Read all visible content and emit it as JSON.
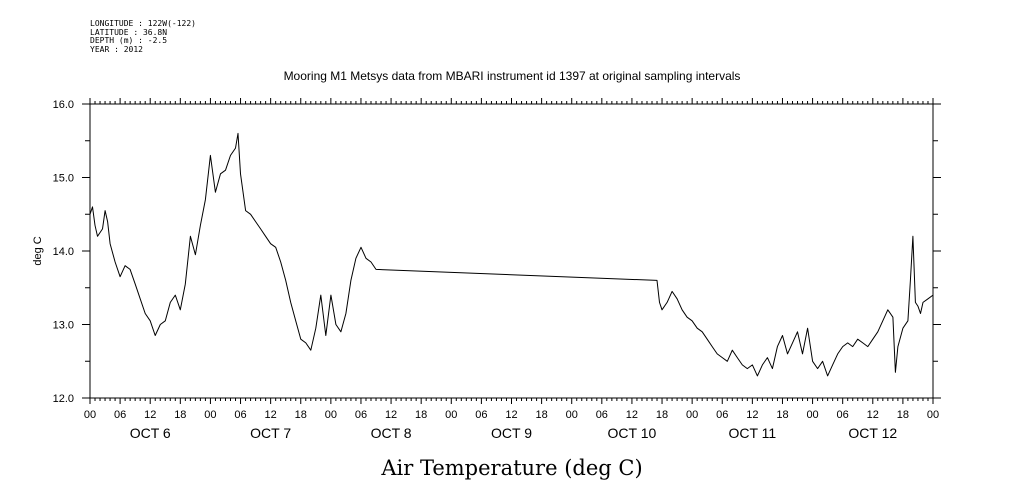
{
  "header": {
    "longitude": "LONGITUDE : 122W(-122)",
    "latitude": "LATITUDE : 36.8N",
    "depth": "DEPTH (m) : -2.5",
    "year": "YEAR : 2012"
  },
  "chart_data": {
    "type": "line",
    "title": "Mooring M1 Metsys data from MBARI instrument id 1397 at original sampling intervals",
    "xlabel": "Air Temperature (deg C)",
    "ylabel": "deg C",
    "ylim": [
      12.0,
      16.0
    ],
    "yticks": [
      "12.0",
      "13.0",
      "14.0",
      "15.0",
      "16.0"
    ],
    "x_units": "hours since OCT 6 00:00",
    "xlim": [
      0,
      168
    ],
    "hour_ticks": [
      "00",
      "06",
      "12",
      "18",
      "00",
      "06",
      "12",
      "18",
      "00",
      "06",
      "12",
      "18",
      "00",
      "06",
      "12",
      "18",
      "00",
      "06",
      "12",
      "18",
      "00",
      "06",
      "12",
      "18",
      "00",
      "06",
      "12",
      "18",
      "00"
    ],
    "day_labels": [
      "OCT  6",
      "OCT  7",
      "OCT  8",
      "OCT  9",
      "OCT 10",
      "OCT 11",
      "OCT 12"
    ],
    "grid": false,
    "series": [
      {
        "values": [
          [
            0,
            14.5
          ],
          [
            0.5,
            14.6
          ],
          [
            1,
            14.35
          ],
          [
            1.5,
            14.2
          ],
          [
            2,
            14.25
          ],
          [
            2.5,
            14.3
          ],
          [
            3,
            14.55
          ],
          [
            3.5,
            14.4
          ],
          [
            4,
            14.1
          ],
          [
            5,
            13.85
          ],
          [
            6,
            13.65
          ],
          [
            7,
            13.8
          ],
          [
            8,
            13.75
          ],
          [
            9,
            13.55
          ],
          [
            10,
            13.35
          ],
          [
            11,
            13.15
          ],
          [
            12,
            13.05
          ],
          [
            13,
            12.85
          ],
          [
            14,
            13.0
          ],
          [
            15,
            13.05
          ],
          [
            16,
            13.3
          ],
          [
            17,
            13.4
          ],
          [
            18,
            13.2
          ],
          [
            19,
            13.55
          ],
          [
            20,
            14.2
          ],
          [
            21,
            13.95
          ],
          [
            22,
            14.35
          ],
          [
            23,
            14.7
          ],
          [
            24,
            15.3
          ],
          [
            25,
            14.8
          ],
          [
            26,
            15.05
          ],
          [
            27,
            15.1
          ],
          [
            28,
            15.3
          ],
          [
            29,
            15.4
          ],
          [
            29.5,
            15.6
          ],
          [
            30,
            15.05
          ],
          [
            31,
            14.55
          ],
          [
            32,
            14.5
          ],
          [
            33,
            14.4
          ],
          [
            34,
            14.3
          ],
          [
            35,
            14.2
          ],
          [
            36,
            14.1
          ],
          [
            37,
            14.05
          ],
          [
            38,
            13.85
          ],
          [
            39,
            13.6
          ],
          [
            40,
            13.3
          ],
          [
            41,
            13.05
          ],
          [
            42,
            12.8
          ],
          [
            43,
            12.75
          ],
          [
            44,
            12.65
          ],
          [
            45,
            12.95
          ],
          [
            46,
            13.4
          ],
          [
            47,
            12.85
          ],
          [
            48,
            13.4
          ],
          [
            49,
            13.0
          ],
          [
            50,
            12.9
          ],
          [
            51,
            13.15
          ],
          [
            52,
            13.6
          ],
          [
            53,
            13.9
          ],
          [
            54,
            14.05
          ],
          [
            55,
            13.9
          ],
          [
            56,
            13.85
          ],
          [
            57,
            13.75
          ],
          [
            113,
            13.6
          ],
          [
            113.5,
            13.3
          ],
          [
            114,
            13.2
          ],
          [
            115,
            13.3
          ],
          [
            116,
            13.45
          ],
          [
            117,
            13.35
          ],
          [
            118,
            13.2
          ],
          [
            119,
            13.1
          ],
          [
            120,
            13.05
          ],
          [
            121,
            12.95
          ],
          [
            122,
            12.9
          ],
          [
            123,
            12.8
          ],
          [
            124,
            12.7
          ],
          [
            125,
            12.6
          ],
          [
            126,
            12.55
          ],
          [
            127,
            12.5
          ],
          [
            128,
            12.65
          ],
          [
            129,
            12.55
          ],
          [
            130,
            12.45
          ],
          [
            131,
            12.4
          ],
          [
            132,
            12.45
          ],
          [
            133,
            12.3
          ],
          [
            134,
            12.45
          ],
          [
            135,
            12.55
          ],
          [
            136,
            12.4
          ],
          [
            137,
            12.7
          ],
          [
            138,
            12.85
          ],
          [
            139,
            12.6
          ],
          [
            140,
            12.75
          ],
          [
            141,
            12.9
          ],
          [
            142,
            12.6
          ],
          [
            143,
            12.95
          ],
          [
            144,
            12.5
          ],
          [
            145,
            12.4
          ],
          [
            146,
            12.5
          ],
          [
            147,
            12.3
          ],
          [
            148,
            12.45
          ],
          [
            149,
            12.6
          ],
          [
            150,
            12.7
          ],
          [
            151,
            12.75
          ],
          [
            152,
            12.7
          ],
          [
            153,
            12.8
          ],
          [
            154,
            12.75
          ],
          [
            155,
            12.7
          ],
          [
            156,
            12.8
          ],
          [
            157,
            12.9
          ],
          [
            158,
            13.05
          ],
          [
            159,
            13.2
          ],
          [
            160,
            13.1
          ],
          [
            160.5,
            12.35
          ],
          [
            161,
            12.7
          ],
          [
            162,
            12.95
          ],
          [
            163,
            13.05
          ],
          [
            163.5,
            13.6
          ],
          [
            164,
            14.2
          ],
          [
            164.5,
            13.3
          ],
          [
            165,
            13.25
          ],
          [
            165.5,
            13.15
          ],
          [
            166,
            13.3
          ],
          [
            167,
            13.35
          ],
          [
            168,
            13.4
          ]
        ]
      }
    ]
  }
}
